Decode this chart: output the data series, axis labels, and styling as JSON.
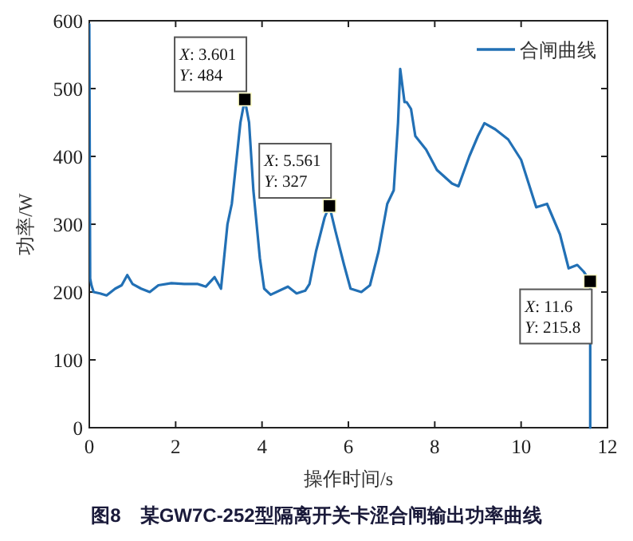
{
  "chart_data": {
    "type": "line",
    "xlabel": "操作时间/s",
    "ylabel": "功率/W",
    "xlim": [
      0,
      12
    ],
    "ylim": [
      0,
      600
    ],
    "xticks": [
      0,
      2,
      4,
      6,
      8,
      10,
      12
    ],
    "yticks": [
      0,
      100,
      200,
      300,
      400,
      500,
      600
    ],
    "grid": false,
    "legend": "top right",
    "line_style": "solid",
    "marker": "none",
    "series": [
      {
        "name": "合闸曲线",
        "color": "#2270b5",
        "x": [
          0,
          0.02,
          0.05,
          0.1,
          0.25,
          0.4,
          0.6,
          0.75,
          0.88,
          1.0,
          1.2,
          1.4,
          1.6,
          1.9,
          2.2,
          2.5,
          2.7,
          2.9,
          3.05,
          3.2,
          3.3,
          3.45,
          3.5,
          3.601,
          3.7,
          3.8,
          3.95,
          4.05,
          4.2,
          4.5,
          4.6,
          4.8,
          5.0,
          5.1,
          5.25,
          5.45,
          5.561,
          5.7,
          5.9,
          6.05,
          6.3,
          6.5,
          6.7,
          6.9,
          7.05,
          7.15,
          7.2,
          7.3,
          7.35,
          7.45,
          7.55,
          7.8,
          8.05,
          8.4,
          8.55,
          8.8,
          9.0,
          9.15,
          9.4,
          9.7,
          10.0,
          10.35,
          10.6,
          10.9,
          11.1,
          11.3,
          11.45,
          11.6,
          11.6
        ],
        "values": [
          595,
          220,
          210,
          200,
          198,
          195,
          205,
          210,
          225,
          212,
          205,
          200,
          210,
          213,
          212,
          212,
          208,
          222,
          205,
          300,
          330,
          420,
          450,
          484,
          450,
          350,
          250,
          205,
          196,
          205,
          208,
          198,
          202,
          212,
          260,
          310,
          327,
          290,
          240,
          205,
          200,
          210,
          260,
          330,
          350,
          450,
          529,
          480,
          480,
          470,
          430,
          410,
          380,
          360,
          356,
          400,
          430,
          449,
          440,
          425,
          395,
          325,
          330,
          285,
          235,
          240,
          230,
          215.8,
          0
        ]
      }
    ],
    "annotations": [
      {
        "text": "X: 3.601\nY: 484",
        "x": 3.601,
        "y": 484
      },
      {
        "text": "X: 5.561\nY: 327",
        "x": 5.561,
        "y": 327
      },
      {
        "text": "X: 11.6\nY: 215.8",
        "x": 11.6,
        "y": 215.8
      },
      "图8　某GW7C-252型隔离开关卡涩合闸输出功率曲线"
    ]
  }
}
